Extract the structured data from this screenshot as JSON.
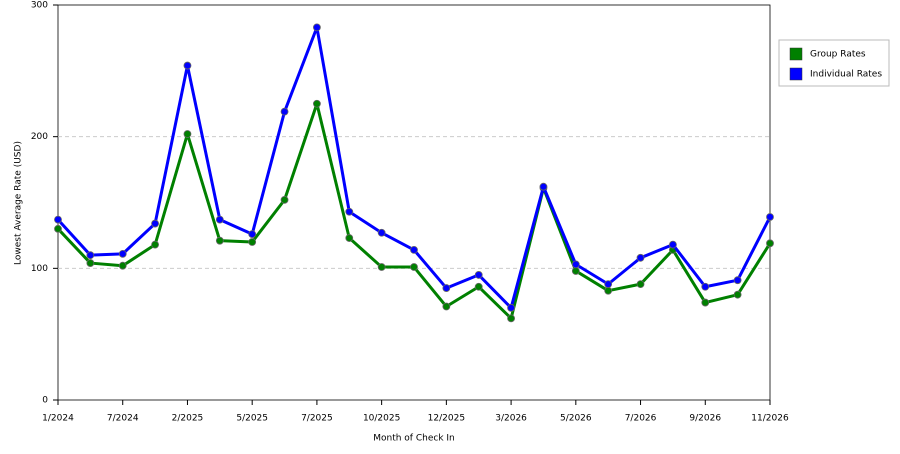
{
  "chart_data": {
    "type": "line",
    "x_label": "Month of Check In",
    "y_label": "Lowest Average Rate (USD)",
    "categories": [
      "1/2024",
      null,
      "7/2024",
      null,
      "2/2025",
      null,
      "5/2025",
      null,
      "7/2025",
      null,
      "10/2025",
      null,
      "12/2025",
      null,
      "3/2026",
      null,
      "5/2026",
      null,
      "7/2026",
      null,
      "9/2026",
      null,
      "11/2026"
    ],
    "series": [
      {
        "name": "Group Rates",
        "color": "#008000",
        "values": [
          130,
          104,
          102,
          118,
          202,
          121,
          120,
          152,
          225,
          123,
          101,
          101,
          71,
          86,
          62,
          161,
          98,
          83,
          88,
          114,
          74,
          80,
          119
        ]
      },
      {
        "name": "Individual Rates",
        "color": "#0000ff",
        "values": [
          137,
          110,
          111,
          134,
          254,
          137,
          126,
          219,
          283,
          143,
          127,
          114,
          85,
          95,
          70,
          162,
          103,
          88,
          108,
          118,
          86,
          91,
          139
        ]
      }
    ],
    "ylim": [
      0,
      300
    ],
    "yticks": [
      0,
      100,
      200,
      300
    ],
    "grid": true,
    "legend": "right"
  }
}
